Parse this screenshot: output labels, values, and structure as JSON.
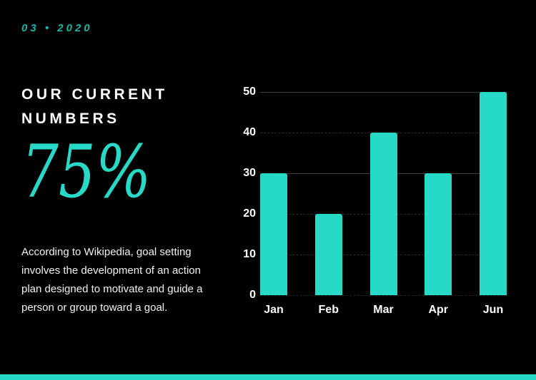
{
  "page": {
    "bg_color": "#000000",
    "accent_color": "#27d9c7",
    "date_color": "#1cb3a9"
  },
  "header": {
    "date": "03 • 2020"
  },
  "left_panel": {
    "heading": "OUR CURRENT NUMBERS",
    "big_number": "75%",
    "paragraph": "According to Wikipedia, goal setting involves the development of an action plan designed to motivate and guide a person or group toward a goal."
  },
  "chart_data": {
    "type": "bar",
    "categories": [
      "Jan",
      "Feb",
      "Mar",
      "Apr",
      "Jun"
    ],
    "values": [
      30,
      20,
      40,
      30,
      50
    ],
    "title": "",
    "xlabel": "",
    "ylabel": "",
    "ylim": [
      0,
      50
    ],
    "yticks": [
      0,
      10,
      20,
      30,
      40,
      50
    ],
    "solid_gridlines": [
      30,
      50
    ],
    "grid": true,
    "legend": false,
    "bar_color": "#27d9c7",
    "tick_label_color": "#ffffff"
  }
}
